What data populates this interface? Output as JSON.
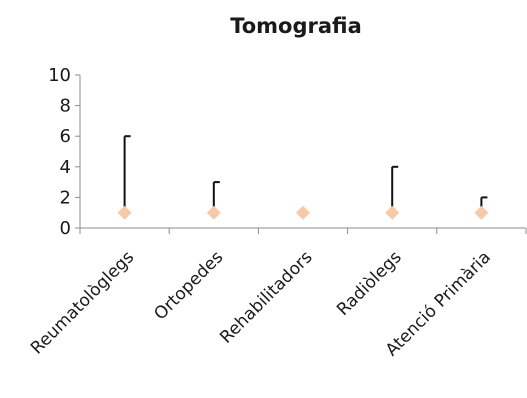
{
  "chart_data": {
    "type": "scatter",
    "title": "Tomografia",
    "xlabel": "",
    "ylabel": "",
    "categories": [
      "Reumatològlegs",
      "Ortopedes",
      "Rehabilitadors",
      "Radiòlegs",
      "Atenció Primària"
    ],
    "ylim": [
      0,
      10
    ],
    "yticks": [
      0,
      2,
      4,
      6,
      8,
      10
    ],
    "grid": false,
    "legend": "none",
    "series": [
      {
        "marker": "diamond",
        "color": "#f7c9a8",
        "values": [
          1,
          1,
          1,
          1,
          1
        ],
        "error_high": [
          6,
          3,
          1,
          4,
          2
        ]
      }
    ],
    "colors": {
      "marker": "#f7c9a8",
      "error_bar": "#111111",
      "axis": "#8c8c8c",
      "text": "#1a1a1a"
    }
  }
}
